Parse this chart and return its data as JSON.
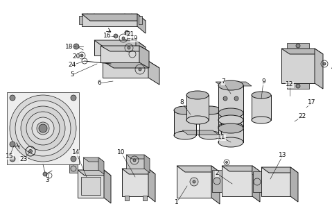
{
  "bg_color": "#ffffff",
  "line_color": "#1a1a1a",
  "figsize": [
    4.79,
    3.2
  ],
  "dpi": 100,
  "lw_thick": 1.0,
  "lw_med": 0.7,
  "lw_thin": 0.5,
  "gray_light": "#d4d4d4",
  "gray_mid": "#b8b8b8",
  "gray_dark": "#888888",
  "white": "#f5f5f5"
}
